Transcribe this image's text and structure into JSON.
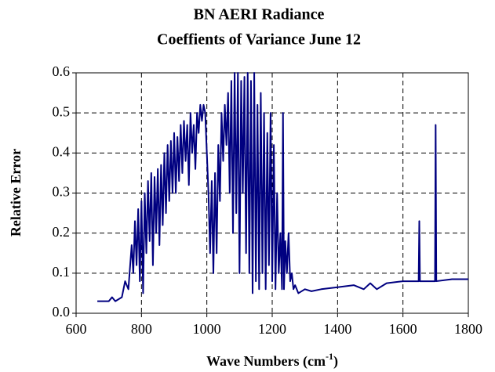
{
  "chart_data": {
    "type": "line",
    "title": "BN AERI Radiance",
    "subtitle": "Coeffients of Variance  June 12",
    "ylabel": "Relative Error",
    "xlabel_parts": [
      "Wave Numbers (cm",
      "-1",
      ")"
    ],
    "xlim": [
      600,
      1800
    ],
    "xticks": [
      600,
      800,
      1000,
      1200,
      1400,
      1600,
      1800
    ],
    "ylim": [
      0,
      0.6
    ],
    "yticks": [
      {
        "value": 0,
        "label": "0.0"
      },
      0.1,
      0.2,
      0.3,
      0.4,
      0.5,
      0.6
    ],
    "grid": true,
    "x": [
      665,
      700,
      710,
      720,
      740,
      750,
      760,
      770,
      775,
      780,
      785,
      790,
      795,
      800,
      805,
      810,
      815,
      820,
      825,
      830,
      835,
      840,
      845,
      850,
      855,
      860,
      865,
      870,
      875,
      880,
      885,
      890,
      895,
      900,
      905,
      910,
      915,
      920,
      925,
      930,
      935,
      940,
      945,
      950,
      955,
      960,
      965,
      970,
      975,
      980,
      985,
      990,
      995,
      1000,
      1005,
      1010,
      1015,
      1020,
      1025,
      1030,
      1035,
      1040,
      1045,
      1050,
      1055,
      1060,
      1065,
      1070,
      1075,
      1080,
      1085,
      1090,
      1095,
      1100,
      1105,
      1110,
      1115,
      1120,
      1125,
      1130,
      1135,
      1140,
      1145,
      1150,
      1155,
      1160,
      1165,
      1170,
      1175,
      1180,
      1185,
      1190,
      1195,
      1200,
      1205,
      1210,
      1215,
      1220,
      1225,
      1230,
      1233,
      1236,
      1240,
      1245,
      1250,
      1255,
      1260,
      1265,
      1270,
      1280,
      1300,
      1320,
      1350,
      1400,
      1450,
      1480,
      1500,
      1520,
      1550,
      1600,
      1640,
      1648,
      1650,
      1652,
      1680,
      1698,
      1700,
      1702,
      1750,
      1800
    ],
    "series": [
      {
        "name": "Relative Error",
        "color": "#000080",
        "values": [
          0.03,
          0.03,
          0.04,
          0.03,
          0.04,
          0.08,
          0.06,
          0.17,
          0.1,
          0.23,
          0.12,
          0.26,
          0.08,
          0.28,
          0.05,
          0.3,
          0.15,
          0.33,
          0.18,
          0.35,
          0.12,
          0.34,
          0.2,
          0.36,
          0.17,
          0.37,
          0.22,
          0.4,
          0.25,
          0.42,
          0.28,
          0.43,
          0.3,
          0.45,
          0.3,
          0.44,
          0.33,
          0.47,
          0.35,
          0.48,
          0.38,
          0.47,
          0.32,
          0.5,
          0.4,
          0.47,
          0.36,
          0.5,
          0.45,
          0.52,
          0.48,
          0.52,
          0.5,
          0.4,
          0.3,
          0.15,
          0.33,
          0.1,
          0.35,
          0.15,
          0.42,
          0.28,
          0.5,
          0.38,
          0.52,
          0.42,
          0.55,
          0.3,
          0.58,
          0.2,
          0.6,
          0.25,
          0.6,
          0.1,
          0.58,
          0.3,
          0.59,
          0.15,
          0.6,
          0.1,
          0.58,
          0.05,
          0.6,
          0.08,
          0.52,
          0.06,
          0.55,
          0.1,
          0.5,
          0.06,
          0.45,
          0.12,
          0.5,
          0.08,
          0.42,
          0.06,
          0.3,
          0.1,
          0.2,
          0.06,
          0.5,
          0.06,
          0.18,
          0.1,
          0.2,
          0.08,
          0.1,
          0.06,
          0.07,
          0.05,
          0.06,
          0.055,
          0.06,
          0.065,
          0.07,
          0.06,
          0.075,
          0.06,
          0.075,
          0.08,
          0.08,
          0.08,
          0.23,
          0.08,
          0.08,
          0.08,
          0.47,
          0.08,
          0.085,
          0.085
        ]
      }
    ]
  }
}
